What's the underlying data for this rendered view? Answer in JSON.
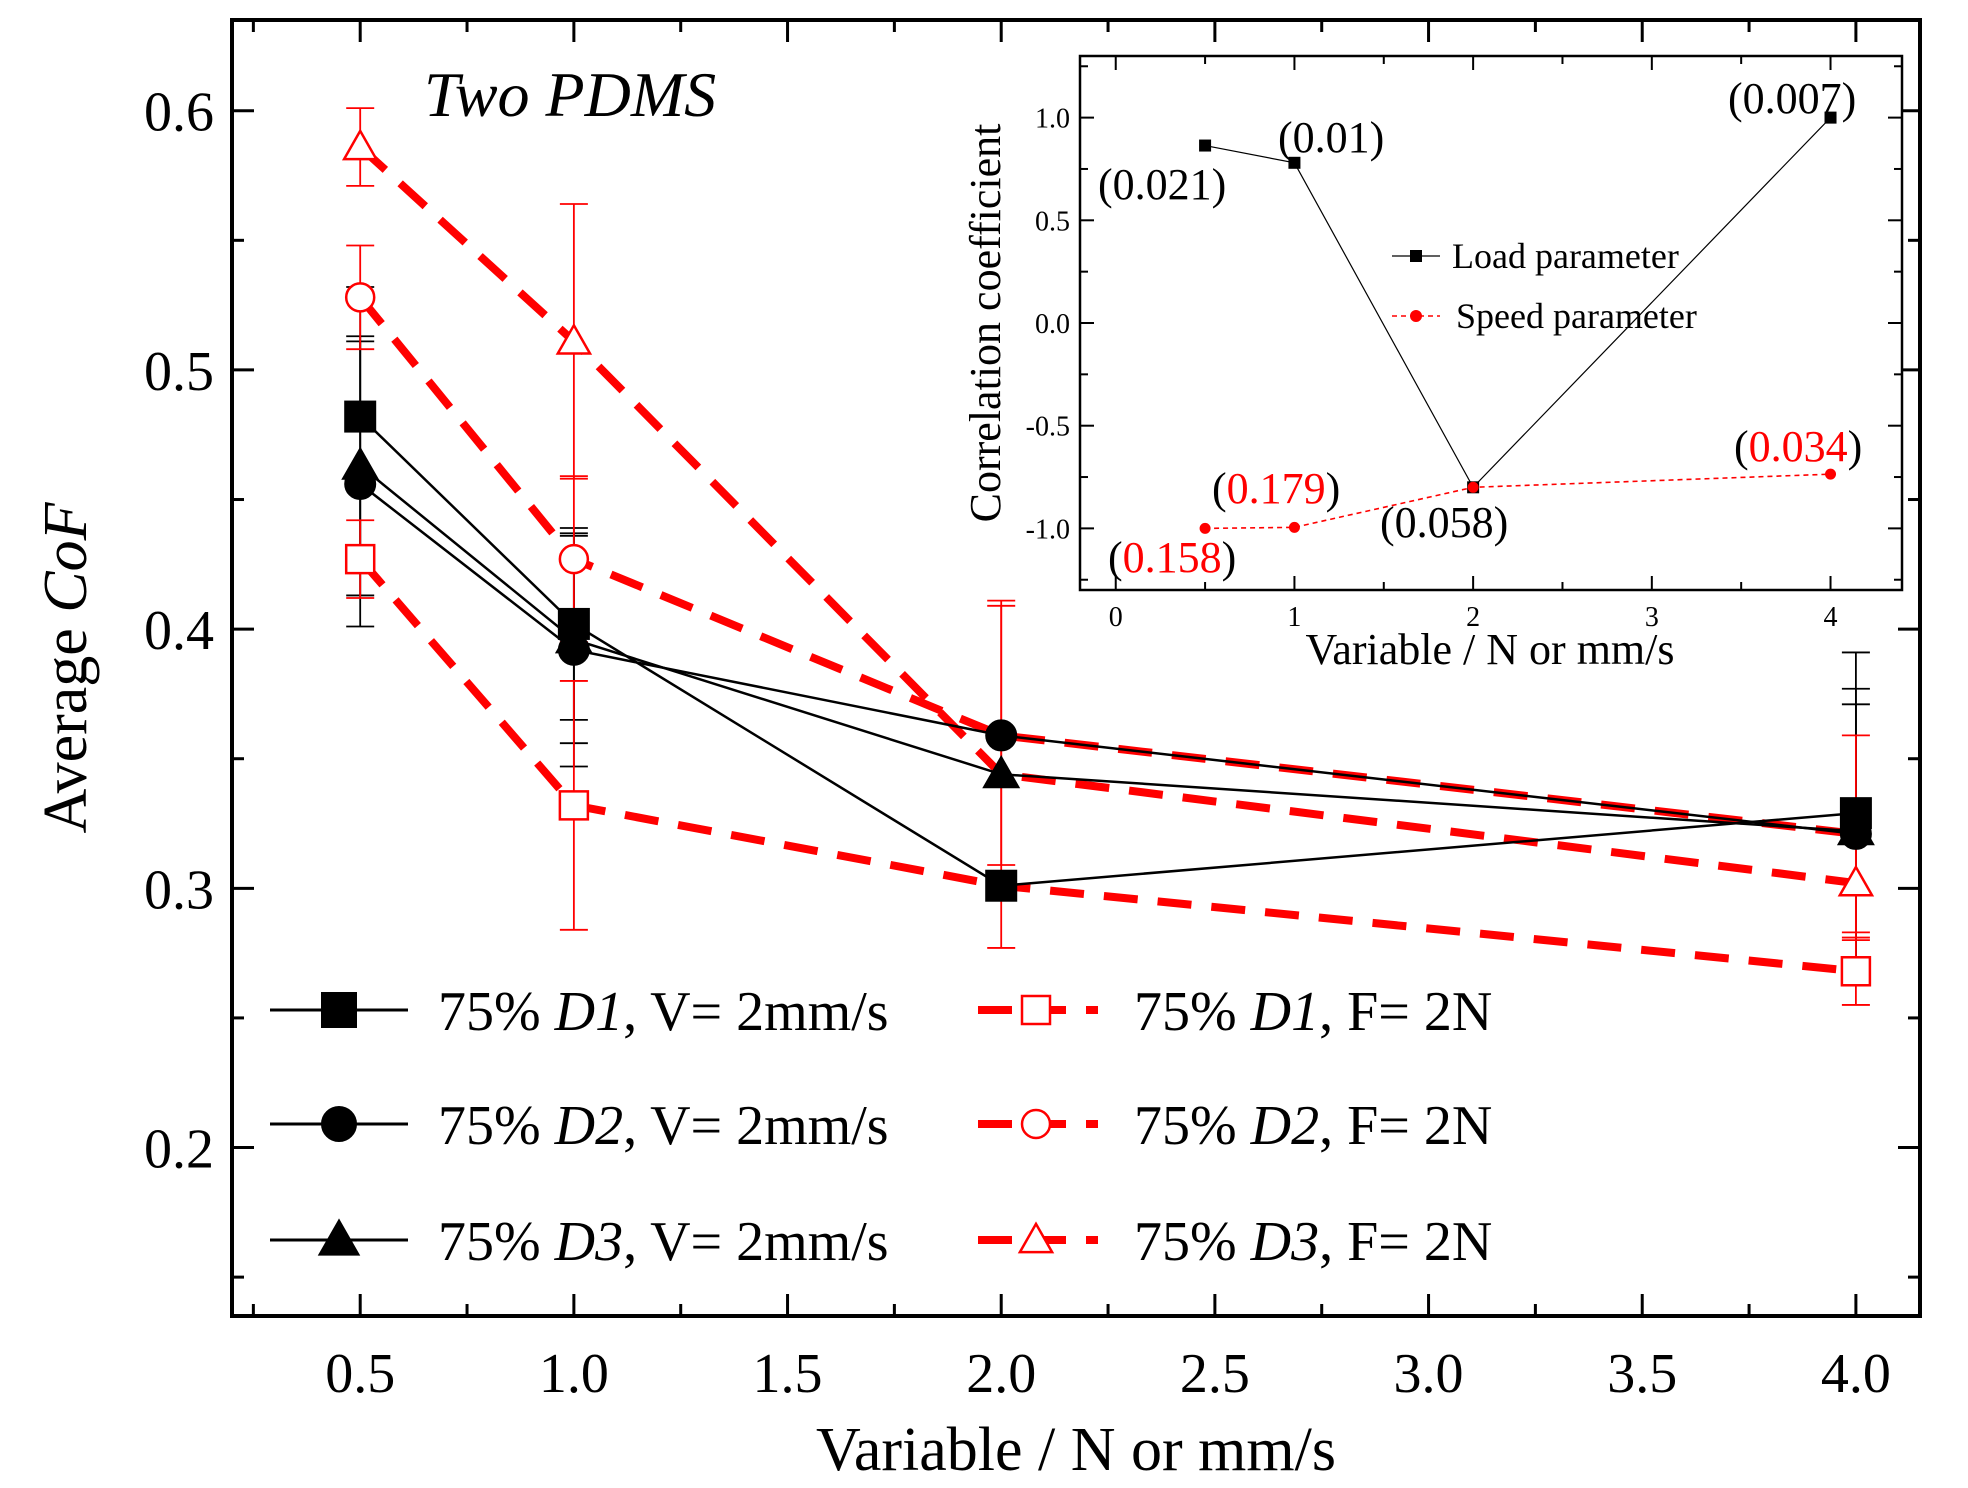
{
  "colors": {
    "load": "#000000",
    "speed": "#ff0000",
    "frame": "#000000",
    "background": "#ffffff"
  },
  "chart_data": [
    {
      "id": "main",
      "type": "line",
      "title": "Two PDMS",
      "xlabel": "Variable / N or mm/s",
      "ylabel_prefix": "Average ",
      "ylabel_italic": "CoF",
      "xlim": [
        0.2,
        4.15
      ],
      "ylim": [
        0.135,
        0.635
      ],
      "x_ticks": [
        0.5,
        1.0,
        1.5,
        2.0,
        2.5,
        3.0,
        3.5,
        4.0
      ],
      "x_tick_labels": [
        "0.5",
        "1.0",
        "1.5",
        "2.0",
        "2.5",
        "3.0",
        "3.5",
        "4.0"
      ],
      "x_tick_positions": [
        0.5,
        1.0,
        1.5,
        2.0,
        2.5,
        3.0,
        3.5,
        4.0
      ],
      "y_ticks": [
        0.2,
        0.3,
        0.4,
        0.5,
        0.6
      ],
      "y_tick_labels": [
        "0.2",
        "0.3",
        "0.4",
        "0.5",
        "0.6"
      ],
      "x_categories": [
        0.5,
        1,
        2,
        4
      ],
      "x_positions": [
        0.5,
        1.0,
        2.0,
        4.0
      ],
      "series": [
        {
          "name": "75% D1, V= 2mm/s",
          "legend_pre": "75% ",
          "legend_italic": "D1",
          "legend_post": ", V= 2mm/s",
          "color": "#000000",
          "marker": "square",
          "filled": true,
          "dashed": false,
          "values": [
            0.482,
            0.402,
            0.301,
            0.329
          ],
          "errors": [
            0.05,
            0.037,
            0.0,
            0.062
          ]
        },
        {
          "name": "75% D2, V= 2mm/s",
          "legend_pre": "75% ",
          "legend_italic": "D2",
          "legend_post": ", V= 2mm/s",
          "color": "#000000",
          "marker": "circle",
          "filled": true,
          "dashed": false,
          "values": [
            0.456,
            0.392,
            0.359,
            0.321
          ],
          "errors": [
            0.055,
            0.045,
            0.0,
            0.05
          ]
        },
        {
          "name": "75% D3, V= 2mm/s",
          "legend_pre": "75% ",
          "legend_italic": "D3",
          "legend_post": ", V= 2mm/s",
          "color": "#000000",
          "marker": "triangle",
          "filled": true,
          "dashed": false,
          "values": [
            0.463,
            0.396,
            0.344,
            0.322
          ],
          "errors": [
            0.05,
            0.04,
            0.0,
            0.055
          ]
        },
        {
          "name": "75% D1, F= 2N",
          "legend_pre": "75% ",
          "legend_italic": "D1",
          "legend_post": ",  F= 2N",
          "color": "#ff0000",
          "marker": "square",
          "filled": false,
          "dashed": true,
          "values": [
            0.427,
            0.332,
            0.301,
            0.268
          ],
          "errors": [
            0.015,
            0.048,
            0.0,
            0.013
          ]
        },
        {
          "name": "75% D2, F= 2N",
          "legend_pre": "75% ",
          "legend_italic": "D2",
          "legend_post": ",  F= 2N",
          "color": "#ff0000",
          "marker": "circle",
          "filled": false,
          "dashed": true,
          "values": [
            0.528,
            0.427,
            0.359,
            0.321
          ],
          "errors": [
            0.02,
            0.032,
            0.05,
            0.038
          ]
        },
        {
          "name": "75% D3, F= 2N",
          "legend_pre": "75% ",
          "legend_italic": "D3",
          "legend_post": ",  F= 2N",
          "color": "#ff0000",
          "marker": "triangle",
          "filled": false,
          "dashed": true,
          "values": [
            0.586,
            0.511,
            0.344,
            0.302
          ],
          "errors": [
            0.015,
            0.053,
            0.067,
            0.022
          ]
        }
      ]
    },
    {
      "id": "inset",
      "type": "line",
      "xlabel": "Variable / N or mm/s",
      "ylabel": "Correlation coefficient",
      "xlim": [
        -0.2,
        4.4
      ],
      "ylim": [
        -1.3,
        1.3
      ],
      "x_ticks": [
        0,
        1,
        2,
        3,
        4
      ],
      "x_tick_labels": [
        "0",
        "1",
        "2",
        "3",
        "4"
      ],
      "y_ticks": [
        1.0,
        0.5,
        0.0,
        -0.5,
        -1.0
      ],
      "y_tick_labels": [
        "1.0",
        "0.5",
        "0.0",
        "-0.5",
        "-1.0"
      ],
      "series": [
        {
          "name": "Load parameter",
          "color": "#000000",
          "marker": "square",
          "x": [
            0.5,
            1,
            2,
            4
          ],
          "y": [
            0.864,
            0.78,
            -0.8,
            1.0
          ],
          "annotations": [
            "(0.021)",
            "(0.01)",
            "(0.058)",
            "(0.007)"
          ]
        },
        {
          "name": "Speed parameter",
          "color": "#ff0000",
          "marker": "circle",
          "x": [
            0.5,
            1,
            2,
            4
          ],
          "y": [
            -1.0,
            -0.995,
            -0.8,
            -0.736
          ],
          "annotations": [
            "0.158",
            "0.179",
            "",
            "0.034"
          ]
        }
      ]
    }
  ]
}
